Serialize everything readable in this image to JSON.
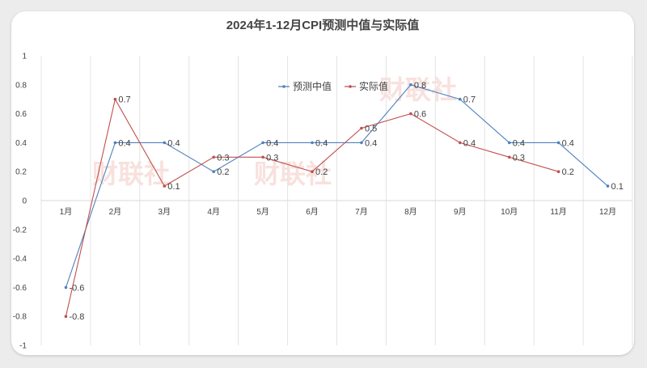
{
  "chart_data": {
    "type": "line",
    "title": "2024年1-12月CPI预测中值与实际值",
    "categories": [
      "1月",
      "2月",
      "3月",
      "4月",
      "5月",
      "6月",
      "7月",
      "8月",
      "9月",
      "10月",
      "11月",
      "12月"
    ],
    "ylim": [
      -1,
      1
    ],
    "yticks": [
      "1",
      "0.8",
      "0.6",
      "0.4",
      "0.2",
      "0",
      "-0.2",
      "-0.4",
      "-0.6",
      "-0.8",
      "-1"
    ],
    "grid": "vertical",
    "legend_position": "top-center",
    "series": [
      {
        "name": "预测中值",
        "color": "#4f81bd",
        "values": [
          -0.6,
          0.4,
          0.4,
          0.2,
          0.4,
          0.4,
          0.4,
          0.8,
          0.7,
          0.4,
          0.4,
          0.1
        ],
        "labels": [
          "-0.6",
          "0.4",
          "0.4",
          "0.2",
          "0.4",
          "0.4",
          "0.4",
          "0.8",
          "0.7",
          "0.4",
          "0.4",
          "0.1"
        ]
      },
      {
        "name": "实际值",
        "color": "#c0504d",
        "values": [
          -0.8,
          0.7,
          0.1,
          0.3,
          0.3,
          0.2,
          0.5,
          0.6,
          0.4,
          0.3,
          0.2,
          null
        ],
        "labels": [
          "-0.8",
          "0.7",
          "0.1",
          "0.3",
          "0.3",
          "0.2",
          "0.5",
          "0.6",
          "0.4",
          "0.3",
          "0.2",
          null
        ]
      }
    ]
  },
  "watermark": "财联社"
}
